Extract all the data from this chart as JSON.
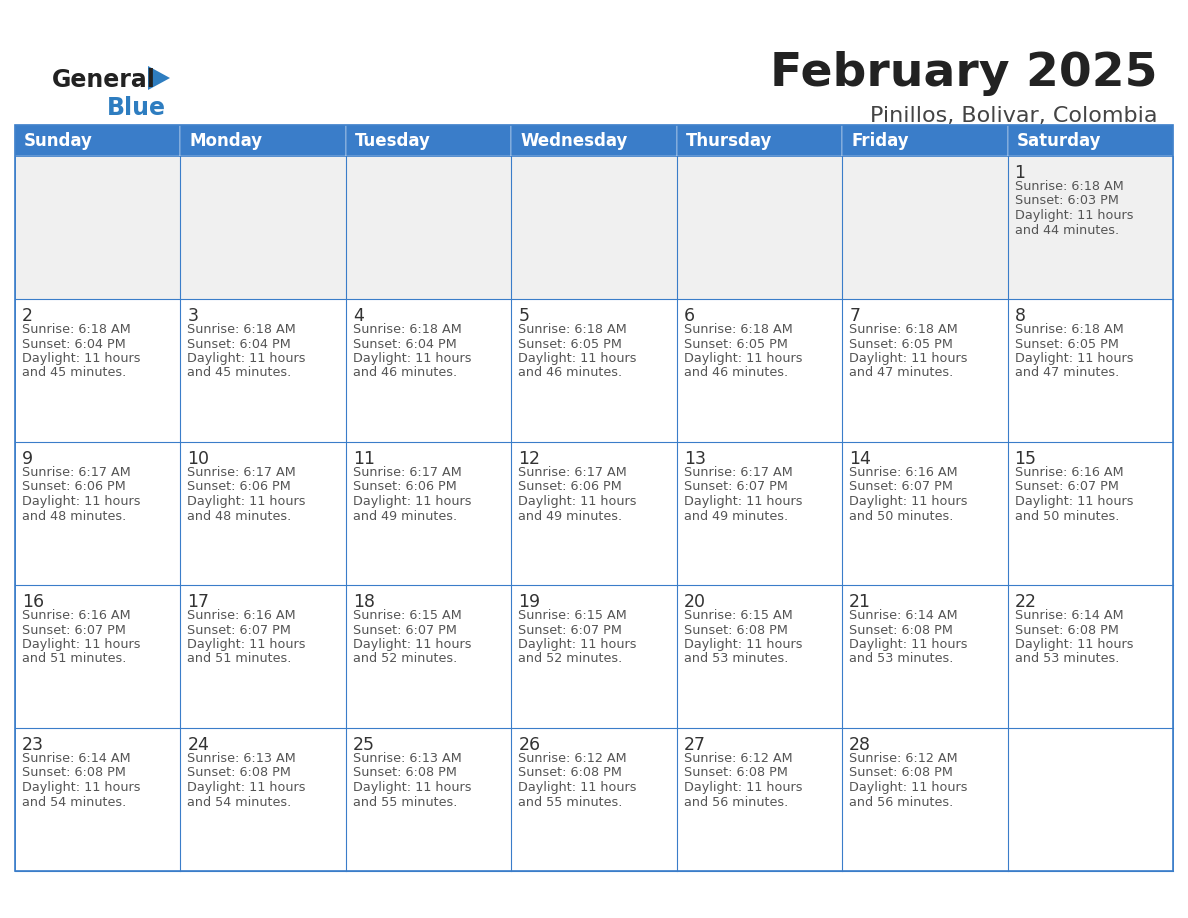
{
  "title": "February 2025",
  "subtitle": "Pinillos, Bolivar, Colombia",
  "days_of_week": [
    "Sunday",
    "Monday",
    "Tuesday",
    "Wednesday",
    "Thursday",
    "Friday",
    "Saturday"
  ],
  "header_bg": "#3A7DC9",
  "header_text": "#FFFFFF",
  "cell_bg_normal": "#FFFFFF",
  "cell_bg_first": "#F0F0F0",
  "border_color": "#3A7DC9",
  "day_number_color": "#333333",
  "cell_text_color": "#555555",
  "title_color": "#222222",
  "subtitle_color": "#444444",
  "logo_general_color": "#222222",
  "logo_blue_color": "#2E7DC0",
  "calendar": [
    [
      null,
      null,
      null,
      null,
      null,
      null,
      {
        "day": 1,
        "sunrise": "6:18 AM",
        "sunset": "6:03 PM",
        "daylight": "11 hours and 44 minutes."
      }
    ],
    [
      {
        "day": 2,
        "sunrise": "6:18 AM",
        "sunset": "6:04 PM",
        "daylight": "11 hours and 45 minutes."
      },
      {
        "day": 3,
        "sunrise": "6:18 AM",
        "sunset": "6:04 PM",
        "daylight": "11 hours and 45 minutes."
      },
      {
        "day": 4,
        "sunrise": "6:18 AM",
        "sunset": "6:04 PM",
        "daylight": "11 hours and 46 minutes."
      },
      {
        "day": 5,
        "sunrise": "6:18 AM",
        "sunset": "6:05 PM",
        "daylight": "11 hours and 46 minutes."
      },
      {
        "day": 6,
        "sunrise": "6:18 AM",
        "sunset": "6:05 PM",
        "daylight": "11 hours and 46 minutes."
      },
      {
        "day": 7,
        "sunrise": "6:18 AM",
        "sunset": "6:05 PM",
        "daylight": "11 hours and 47 minutes."
      },
      {
        "day": 8,
        "sunrise": "6:18 AM",
        "sunset": "6:05 PM",
        "daylight": "11 hours and 47 minutes."
      }
    ],
    [
      {
        "day": 9,
        "sunrise": "6:17 AM",
        "sunset": "6:06 PM",
        "daylight": "11 hours and 48 minutes."
      },
      {
        "day": 10,
        "sunrise": "6:17 AM",
        "sunset": "6:06 PM",
        "daylight": "11 hours and 48 minutes."
      },
      {
        "day": 11,
        "sunrise": "6:17 AM",
        "sunset": "6:06 PM",
        "daylight": "11 hours and 49 minutes."
      },
      {
        "day": 12,
        "sunrise": "6:17 AM",
        "sunset": "6:06 PM",
        "daylight": "11 hours and 49 minutes."
      },
      {
        "day": 13,
        "sunrise": "6:17 AM",
        "sunset": "6:07 PM",
        "daylight": "11 hours and 49 minutes."
      },
      {
        "day": 14,
        "sunrise": "6:16 AM",
        "sunset": "6:07 PM",
        "daylight": "11 hours and 50 minutes."
      },
      {
        "day": 15,
        "sunrise": "6:16 AM",
        "sunset": "6:07 PM",
        "daylight": "11 hours and 50 minutes."
      }
    ],
    [
      {
        "day": 16,
        "sunrise": "6:16 AM",
        "sunset": "6:07 PM",
        "daylight": "11 hours and 51 minutes."
      },
      {
        "day": 17,
        "sunrise": "6:16 AM",
        "sunset": "6:07 PM",
        "daylight": "11 hours and 51 minutes."
      },
      {
        "day": 18,
        "sunrise": "6:15 AM",
        "sunset": "6:07 PM",
        "daylight": "11 hours and 52 minutes."
      },
      {
        "day": 19,
        "sunrise": "6:15 AM",
        "sunset": "6:07 PM",
        "daylight": "11 hours and 52 minutes."
      },
      {
        "day": 20,
        "sunrise": "6:15 AM",
        "sunset": "6:08 PM",
        "daylight": "11 hours and 53 minutes."
      },
      {
        "day": 21,
        "sunrise": "6:14 AM",
        "sunset": "6:08 PM",
        "daylight": "11 hours and 53 minutes."
      },
      {
        "day": 22,
        "sunrise": "6:14 AM",
        "sunset": "6:08 PM",
        "daylight": "11 hours and 53 minutes."
      }
    ],
    [
      {
        "day": 23,
        "sunrise": "6:14 AM",
        "sunset": "6:08 PM",
        "daylight": "11 hours and 54 minutes."
      },
      {
        "day": 24,
        "sunrise": "6:13 AM",
        "sunset": "6:08 PM",
        "daylight": "11 hours and 54 minutes."
      },
      {
        "day": 25,
        "sunrise": "6:13 AM",
        "sunset": "6:08 PM",
        "daylight": "11 hours and 55 minutes."
      },
      {
        "day": 26,
        "sunrise": "6:12 AM",
        "sunset": "6:08 PM",
        "daylight": "11 hours and 55 minutes."
      },
      {
        "day": 27,
        "sunrise": "6:12 AM",
        "sunset": "6:08 PM",
        "daylight": "11 hours and 56 minutes."
      },
      {
        "day": 28,
        "sunrise": "6:12 AM",
        "sunset": "6:08 PM",
        "daylight": "11 hours and 56 minutes."
      },
      null
    ]
  ]
}
